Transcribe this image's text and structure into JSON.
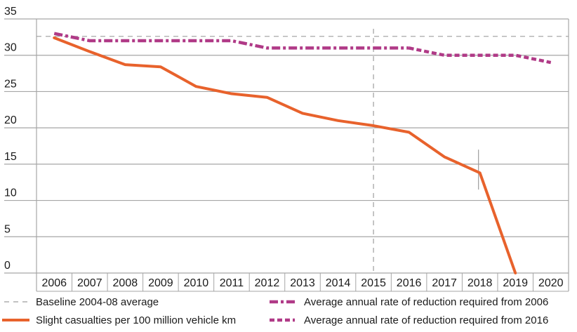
{
  "chart_data": {
    "type": "line",
    "title": "",
    "xlabel": "",
    "ylabel": "",
    "ylim": [
      0,
      35
    ],
    "yticks": [
      0,
      5,
      10,
      15,
      20,
      25,
      30,
      35
    ],
    "categories": [
      "2006",
      "2007",
      "2008",
      "2009",
      "2010",
      "2011",
      "2012",
      "2013",
      "2014",
      "2015",
      "2016",
      "2017",
      "2018",
      "2019",
      "2020"
    ],
    "grid": true,
    "legend_position": "bottom",
    "baseline": {
      "name": "Baseline 2004-08 average",
      "value": 32.6,
      "color": "#9e9e9e",
      "style": "dashed"
    },
    "reference_marker": {
      "category": "2015",
      "style": "dashed-vertical",
      "color": "#9e9e9e"
    },
    "error_bar": {
      "category": "2018",
      "low": 11.5,
      "high": 17.0,
      "color": "#9e9e9e"
    },
    "series": [
      {
        "name": "Slight casualties per 100 million vehicle km",
        "color": "#e8622c",
        "style": "solid",
        "values": [
          32.4,
          30.5,
          28.7,
          28.4,
          25.7,
          24.7,
          24.2,
          22.0,
          21.0,
          20.3,
          19.4,
          16.0,
          13.8,
          0.0,
          null
        ]
      },
      {
        "name": "Average annual rate of reduction required from 2006",
        "color": "#b03a87",
        "style": "dash-dot",
        "values": [
          33.0,
          32.0,
          32.0,
          32.0,
          32.0,
          32.0,
          31.0,
          31.0,
          31.0,
          31.0,
          31.0,
          null,
          null,
          null,
          null
        ]
      },
      {
        "name": "Average annual rate of reduction required from 2016",
        "color": "#b03a87",
        "style": "dotted",
        "values": [
          null,
          null,
          null,
          null,
          null,
          null,
          null,
          null,
          null,
          null,
          31.0,
          30.0,
          30.0,
          30.0,
          29.0
        ]
      }
    ]
  },
  "legend": {
    "items": [
      {
        "label": "Baseline 2004-08 average"
      },
      {
        "label": "Average annual rate of reduction required from 2006"
      },
      {
        "label": "Slight casualties per 100 million vehicle km"
      },
      {
        "label": "Average annual rate of reduction required from 2016"
      }
    ]
  }
}
